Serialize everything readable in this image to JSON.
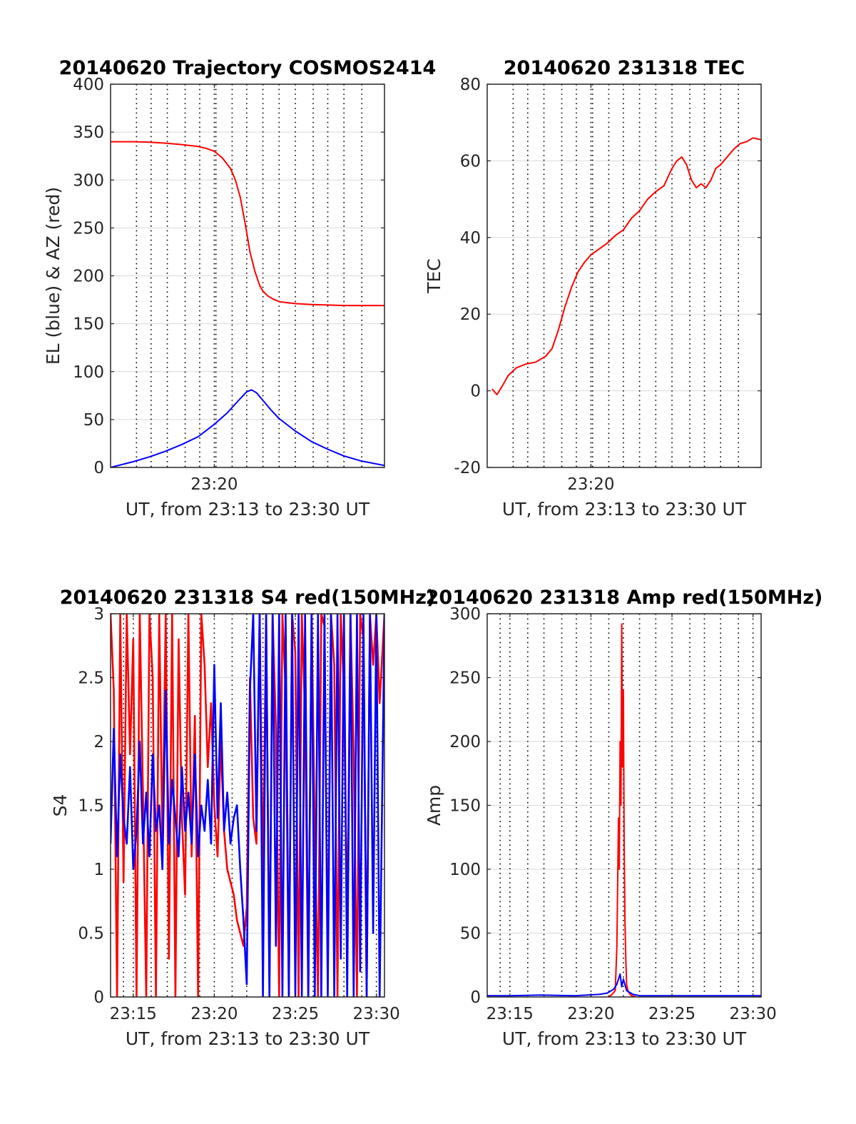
{
  "colors": {
    "el": "#0000ff",
    "az": "#ff0000",
    "tec": "#ff0000",
    "s4_red": "#ff0000",
    "s4_blue": "#0000ff",
    "amp_red": "#ff0000",
    "amp_blue": "#0000ff",
    "grid": "#d9d9d9",
    "axis": "#262626"
  },
  "chart_data": [
    {
      "id": "trajectory",
      "type": "line",
      "title": "20140620 Trajectory COSMOS2414",
      "xlabel": "UT, from 23:13 to 23:30 UT",
      "ylabel": "EL (blue) & AZ (red)",
      "xlim": [
        13.6,
        30.5
      ],
      "ylim": [
        0,
        400
      ],
      "xticks": [
        20
      ],
      "xtick_labels": [
        "23:20"
      ],
      "yticks": [
        0,
        50,
        100,
        150,
        200,
        250,
        300,
        350,
        400
      ],
      "ytick_labels": [
        "0",
        "50",
        "100",
        "150",
        "200",
        "250",
        "300",
        "350",
        "400"
      ],
      "minor_dotted_x": [
        15.2,
        16.1,
        17.1,
        18.2,
        19.1,
        20.1,
        21.1,
        22.0,
        23.0,
        24.0,
        25.0,
        26.1,
        27.0,
        28.0,
        29.1
      ],
      "grid": "y",
      "series": [
        {
          "name": "AZ",
          "color_key": "az",
          "x": [
            13.6,
            15,
            16,
            17,
            18,
            19,
            19.5,
            20,
            20.5,
            21,
            21.3,
            21.6,
            21.9,
            22.2,
            22.5,
            22.8,
            23.0,
            23.3,
            23.6,
            24,
            24.5,
            25,
            26,
            27,
            28,
            29,
            30.5
          ],
          "y": [
            340,
            340,
            339.5,
            338.5,
            337,
            335,
            333,
            330,
            323,
            312,
            300,
            282,
            255,
            225,
            205,
            190,
            184,
            179,
            176,
            173,
            172,
            171,
            170,
            169.5,
            169,
            169,
            169
          ]
        },
        {
          "name": "EL",
          "color_key": "el",
          "x": [
            13.6,
            15,
            16,
            17,
            18,
            19,
            20,
            20.8,
            21.5,
            22.0,
            22.3,
            22.6,
            23.0,
            23.5,
            24,
            25,
            26,
            27,
            28,
            29,
            30.5
          ],
          "y": [
            0,
            6,
            11,
            17,
            24,
            32,
            45,
            57,
            70,
            79,
            81,
            78,
            70,
            60,
            51,
            38,
            27,
            19,
            12,
            7,
            2
          ]
        }
      ]
    },
    {
      "id": "tec",
      "type": "line",
      "title": "20140620 231318 TEC",
      "xlabel": "UT, from 23:13 to 23:30 UT",
      "ylabel": "TEC",
      "xlim": [
        13.6,
        30.5
      ],
      "ylim": [
        -20,
        80
      ],
      "xticks": [
        20
      ],
      "xtick_labels": [
        "23:20"
      ],
      "yticks": [
        -20,
        0,
        20,
        40,
        60,
        80
      ],
      "ytick_labels": [
        "-20",
        "0",
        "20",
        "40",
        "60",
        "80"
      ],
      "minor_dotted_x": [
        15.2,
        16.1,
        17.1,
        18.2,
        19.1,
        20.1,
        21.1,
        22.0,
        23.0,
        24.0,
        25.0,
        26.1,
        27.0,
        28.0,
        29.1
      ],
      "grid": "y",
      "series": [
        {
          "name": "TEC",
          "color_key": "tec",
          "x": [
            13.9,
            14.2,
            14.5,
            14.9,
            15.4,
            16.0,
            16.6,
            17.2,
            17.6,
            18.0,
            18.4,
            18.8,
            19.2,
            19.6,
            20.0,
            20.5,
            21.0,
            21.5,
            22.0,
            22.5,
            23.0,
            23.5,
            24.0,
            24.5,
            25.0,
            25.3,
            25.6,
            25.9,
            26.2,
            26.5,
            26.8,
            27.1,
            27.4,
            27.7,
            28.0,
            28.4,
            28.8,
            29.2,
            29.6,
            30.0,
            30.5
          ],
          "y": [
            0.5,
            -1,
            1,
            4,
            6,
            7,
            7.5,
            9,
            11,
            16,
            22,
            27,
            31,
            33.5,
            35.5,
            37,
            38.5,
            40.5,
            42,
            45,
            47,
            50,
            52,
            53.5,
            58,
            60,
            61,
            59,
            55,
            53,
            54,
            53,
            55,
            58,
            59,
            61,
            63,
            64.5,
            65,
            66,
            65.5
          ]
        }
      ]
    },
    {
      "id": "s4",
      "type": "line",
      "title": "20140620 231318 S4 red(150MHz)",
      "xlabel": "UT, from 23:13 to 23:30 UT",
      "ylabel": "S4",
      "xlim": [
        13.6,
        30.5
      ],
      "ylim": [
        0,
        3
      ],
      "xticks": [
        15,
        20,
        25,
        30
      ],
      "xtick_labels": [
        "23:15",
        "23:20",
        "23:25",
        "23:30"
      ],
      "yticks": [
        0,
        0.5,
        1,
        1.5,
        2,
        2.5,
        3
      ],
      "ytick_labels": [
        "0",
        "0.5",
        "1",
        "1.5",
        "2",
        "2.5",
        "3"
      ],
      "minor_dotted_x": [
        14.4,
        16.1,
        17.1,
        18.2,
        19.1,
        21.1,
        22.0,
        23.0,
        24.0,
        26.1,
        27.0,
        28.0,
        29.1
      ],
      "grid": "y",
      "series": [
        {
          "name": "red",
          "color_key": "s4_red",
          "x": [
            13.6,
            13.8,
            14.0,
            14.2,
            14.4,
            14.6,
            14.8,
            15.0,
            15.2,
            15.4,
            15.6,
            15.8,
            16.0,
            16.2,
            16.4,
            16.6,
            16.8,
            17.0,
            17.2,
            17.4,
            17.6,
            17.8,
            18.0,
            18.2,
            18.4,
            18.6,
            18.8,
            19.0,
            19.2,
            19.4,
            19.6,
            19.8,
            20.0,
            20.2,
            20.4,
            20.6,
            20.8,
            21.0,
            21.2,
            21.4,
            21.6,
            21.8,
            22.0,
            22.2,
            22.4,
            22.6,
            22.8,
            23.0,
            23.2,
            23.4,
            23.6,
            23.8,
            24.0,
            24.2,
            24.4,
            24.6,
            24.8,
            25.0,
            25.2,
            25.4,
            25.6,
            25.8,
            26.0,
            26.2,
            26.4,
            26.6,
            26.8,
            27.0,
            27.2,
            27.4,
            27.6,
            27.8,
            28.0,
            28.2,
            28.4,
            28.6,
            28.8,
            29.0,
            29.2,
            29.4,
            29.6,
            29.8,
            30.0,
            30.2,
            30.5
          ],
          "y": [
            3,
            2.4,
            0,
            3,
            0.9,
            3,
            1.9,
            2.8,
            0,
            3,
            1.6,
            0,
            3,
            2.5,
            0,
            3,
            1.2,
            3,
            0.3,
            3,
            0,
            2.8,
            1.4,
            0.8,
            3,
            1.1,
            2.2,
            0,
            3,
            2.6,
            1.8,
            2.3,
            1.5,
            1.1,
            2.0,
            1.3,
            1.0,
            0.9,
            0.8,
            0.6,
            0.5,
            0.4,
            0.7,
            2.5,
            1.4,
            1.2,
            3,
            0.9,
            3,
            0.1,
            3,
            2.1,
            0,
            3,
            2.4,
            0,
            3,
            2.7,
            0,
            3,
            2.2,
            0,
            3,
            1.3,
            0,
            3,
            2.9,
            0.2,
            3,
            2.6,
            0,
            3,
            2.4,
            0.5,
            3,
            1.9,
            0,
            3,
            2.8,
            0,
            3,
            2.6,
            3,
            2.3,
            3
          ]
        },
        {
          "name": "blue",
          "color_key": "s4_blue",
          "x": [
            13.6,
            13.8,
            14.0,
            14.2,
            14.4,
            14.6,
            14.8,
            15.0,
            15.2,
            15.4,
            15.6,
            15.8,
            16.0,
            16.2,
            16.4,
            16.6,
            16.8,
            17.0,
            17.2,
            17.4,
            17.6,
            17.8,
            18.0,
            18.2,
            18.4,
            18.6,
            18.8,
            19.0,
            19.2,
            19.4,
            19.6,
            19.8,
            20.0,
            20.2,
            20.4,
            20.6,
            20.8,
            21.0,
            21.2,
            21.4,
            21.6,
            21.8,
            22.0,
            22.2,
            22.4,
            22.6,
            22.8,
            23.0,
            23.2,
            23.4,
            23.6,
            23.8,
            24.0,
            24.2,
            24.4,
            24.6,
            24.8,
            25.0,
            25.2,
            25.4,
            25.6,
            25.8,
            26.0,
            26.2,
            26.4,
            26.6,
            26.8,
            27.0,
            27.2,
            27.4,
            27.6,
            27.8,
            28.0,
            28.2,
            28.4,
            28.6,
            28.8,
            29.0,
            29.2,
            29.4,
            29.6,
            29.8,
            30.0,
            30.2,
            30.5
          ],
          "y": [
            1.2,
            2.1,
            1.1,
            1.9,
            1.4,
            1.2,
            1.8,
            1.0,
            1.3,
            2.0,
            1.2,
            1.6,
            1.1,
            1.9,
            1.3,
            1.5,
            1.0,
            2.4,
            1.2,
            1.7,
            1.4,
            1.1,
            1.8,
            1.3,
            1.6,
            1.2,
            1.9,
            1.1,
            1.5,
            1.3,
            1.7,
            1.2,
            2.6,
            1.4,
            2.3,
            1.3,
            1.6,
            1.2,
            1.4,
            1.5,
            1.0,
            0.6,
            0.1,
            2.4,
            3,
            1.3,
            3,
            0,
            3,
            0,
            3,
            0.4,
            3,
            0,
            3,
            0,
            3,
            0,
            3,
            0,
            3,
            0,
            3,
            0,
            3,
            0,
            3,
            0,
            3,
            0,
            3,
            0.3,
            3,
            0,
            3,
            0,
            3,
            0.2,
            3,
            0,
            3,
            0.5,
            3,
            0,
            3
          ]
        }
      ]
    },
    {
      "id": "amp",
      "type": "line",
      "title": "20140620 231318 Amp red(150MHz)",
      "xlabel": "UT, from 23:13 to 23:30 UT",
      "ylabel": "Amp",
      "xlim": [
        13.6,
        30.5
      ],
      "ylim": [
        0,
        300
      ],
      "xticks": [
        15,
        20,
        25,
        30
      ],
      "xtick_labels": [
        "23:15",
        "23:20",
        "23:25",
        "23:30"
      ],
      "yticks": [
        0,
        50,
        100,
        150,
        200,
        250,
        300
      ],
      "ytick_labels": [
        "0",
        "50",
        "100",
        "150",
        "200",
        "250",
        "300"
      ],
      "minor_dotted_x": [
        14.4,
        16.1,
        17.1,
        18.2,
        19.1,
        21.1,
        22.0,
        23.0,
        24.0,
        26.1,
        27.0,
        28.0,
        29.1
      ],
      "grid": "y",
      "series": [
        {
          "name": "red",
          "color_key": "amp_red",
          "x": [
            21.1,
            21.3,
            21.5,
            21.6,
            21.7,
            21.75,
            21.8,
            21.85,
            21.9,
            21.95,
            22.0,
            22.05,
            22.1,
            22.15,
            22.2,
            22.3,
            22.5,
            22.8
          ],
          "y": [
            0,
            2,
            5,
            40,
            140,
            100,
            200,
            150,
            292,
            180,
            240,
            120,
            60,
            30,
            10,
            4,
            1,
            0
          ]
        },
        {
          "name": "blue",
          "color_key": "amp_blue",
          "x": [
            13.6,
            15,
            17,
            19,
            20.5,
            21.0,
            21.4,
            21.6,
            21.8,
            21.9,
            22.0,
            22.2,
            22.6,
            23,
            25,
            27,
            29,
            30.5
          ],
          "y": [
            1,
            1,
            1.5,
            1,
            2,
            3,
            6,
            10,
            18,
            8,
            14,
            5,
            2,
            1,
            1,
            1,
            1,
            1
          ]
        }
      ]
    }
  ]
}
